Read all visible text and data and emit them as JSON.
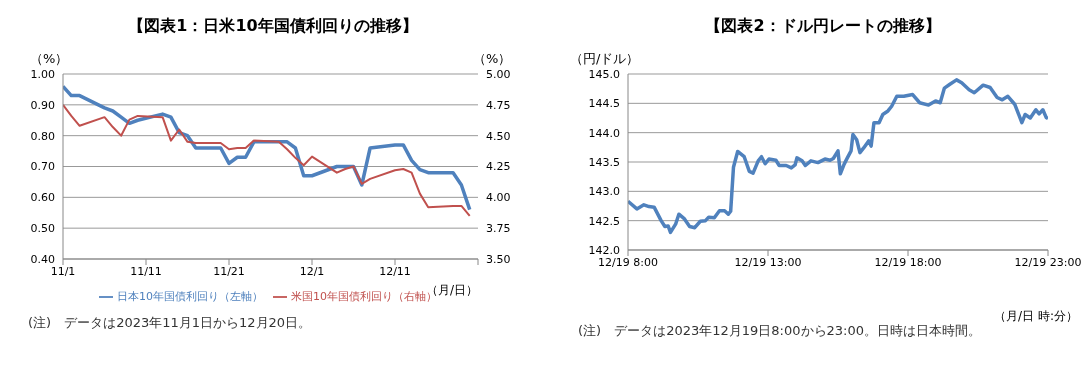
{
  "chart_data": [
    {
      "type": "line",
      "title": "【図表1：日米10年国債利回りの推移】",
      "ylabel": "（%）",
      "y2label": "（%）",
      "xlabel": "（月/日）",
      "x": [
        "2023-11-01",
        "2023-11-02",
        "2023-11-03",
        "2023-11-06",
        "2023-11-07",
        "2023-11-08",
        "2023-11-09",
        "2023-11-10",
        "2023-11-13",
        "2023-11-14",
        "2023-11-15",
        "2023-11-16",
        "2023-11-17",
        "2023-11-20",
        "2023-11-21",
        "2023-11-22",
        "2023-11-23",
        "2023-11-24",
        "2023-11-27",
        "2023-11-28",
        "2023-11-29",
        "2023-11-30",
        "2023-12-01",
        "2023-12-04",
        "2023-12-05",
        "2023-12-06",
        "2023-12-07",
        "2023-12-08",
        "2023-12-11",
        "2023-12-12",
        "2023-12-13",
        "2023-12-14",
        "2023-12-15",
        "2023-12-18",
        "2023-12-19",
        "2023-12-20"
      ],
      "series": [
        {
          "name": "日本10年国債利回り（左軸）",
          "color": "#4f81bd",
          "values": [
            0.96,
            0.93,
            0.93,
            0.89,
            0.88,
            0.86,
            0.84,
            0.85,
            0.87,
            0.86,
            0.81,
            0.8,
            0.76,
            0.76,
            0.71,
            0.73,
            0.73,
            0.78,
            0.78,
            0.78,
            0.76,
            0.67,
            0.67,
            0.7,
            0.7,
            0.7,
            0.64,
            0.76,
            0.77,
            0.77,
            0.72,
            0.69,
            0.68,
            0.68,
            0.64,
            0.56
          ]
        },
        {
          "name": "米国10年国債利回り（右軸）",
          "color": "#c0504d",
          "axis": "y2",
          "values": [
            4.75,
            4.66,
            4.58,
            4.65,
            4.57,
            4.5,
            4.63,
            4.66,
            4.65,
            4.46,
            4.55,
            4.45,
            4.44,
            4.44,
            4.39,
            4.4,
            4.4,
            4.46,
            4.45,
            4.39,
            4.32,
            4.26,
            4.33,
            4.2,
            4.23,
            4.25,
            4.11,
            4.15,
            4.22,
            4.23,
            4.2,
            4.03,
            3.92,
            3.93,
            3.93,
            3.85
          ]
        }
      ],
      "xlim": [
        "2023-11-01",
        "2023-12-21"
      ],
      "xticks": [
        {
          "value": "2023-11-01",
          "label": "11/1"
        },
        {
          "value": "2023-11-11",
          "label": "11/11"
        },
        {
          "value": "2023-11-21",
          "label": "11/21"
        },
        {
          "value": "2023-12-01",
          "label": "12/1"
        },
        {
          "value": "2023-12-11",
          "label": "12/11"
        },
        {
          "value": "2023-12-21",
          "label": null
        }
      ],
      "ylim": [
        0.4,
        1.0
      ],
      "yticks": [
        {
          "value": 0.4,
          "label": "0.40"
        },
        {
          "value": 0.5,
          "label": "0.50"
        },
        {
          "value": 0.6,
          "label": "0.60"
        },
        {
          "value": 0.7,
          "label": "0.70"
        },
        {
          "value": 0.8,
          "label": "0.80"
        },
        {
          "value": 0.9,
          "label": "0.90"
        },
        {
          "value": 1.0,
          "label": "1.00"
        }
      ],
      "y2lim": [
        3.5,
        5.0
      ],
      "y2ticks": [
        {
          "value": 3.5,
          "label": "3.50"
        },
        3.75,
        {
          "value": 4.0,
          "label": "4.00"
        },
        4.25,
        {
          "value": 4.5,
          "label": "4.50"
        },
        4.75,
        {
          "value": 5.0,
          "label": "5.00"
        }
      ],
      "grid": "y",
      "legend": "bottom",
      "marker": "none",
      "line_style": "solid",
      "annotations": [
        "(注)　データは2023年11月1日から12月20日。"
      ]
    },
    {
      "type": "line",
      "title": "【図表2：ドル円レートの推移】",
      "ylabel": "（円/ドル）",
      "xlabel": "（月/日 時:分）",
      "x": [
        "2023-12-19T08:00",
        "2023-12-19T08:19",
        "2023-12-19T08:34",
        "2023-12-19T08:45",
        "2023-12-19T08:56",
        "2023-12-19T09:11",
        "2023-12-19T09:19",
        "2023-12-19T09:26",
        "2023-12-19T09:31",
        "2023-12-19T09:42",
        "2023-12-19T09:49",
        "2023-12-19T10:01",
        "2023-12-19T10:12",
        "2023-12-19T10:23",
        "2023-12-19T10:35",
        "2023-12-19T10:46",
        "2023-12-19T10:53",
        "2023-12-19T11:05",
        "2023-12-19T11:16",
        "2023-12-19T11:27",
        "2023-12-19T11:35",
        "2023-12-19T11:40",
        "2023-12-19T11:46",
        "2023-12-19T11:55",
        "2023-12-19T12:09",
        "2023-12-19T12:20",
        "2023-12-19T12:28",
        "2023-12-19T12:39",
        "2023-12-19T12:46",
        "2023-12-19T12:54",
        "2023-12-19T13:02",
        "2023-12-19T13:17",
        "2023-12-19T13:24",
        "2023-12-19T13:39",
        "2023-12-19T13:50",
        "2023-12-19T13:58",
        "2023-12-19T14:02",
        "2023-12-19T14:13",
        "2023-12-19T14:20",
        "2023-12-19T14:32",
        "2023-12-19T14:47",
        "2023-12-19T15:02",
        "2023-12-19T15:13",
        "2023-12-19T15:20",
        "2023-12-19T15:30",
        "2023-12-19T15:35",
        "2023-12-19T15:43",
        "2023-12-19T15:50",
        "2023-12-19T15:58",
        "2023-12-19T16:02",
        "2023-12-19T16:10",
        "2023-12-19T16:17",
        "2023-12-19T16:25",
        "2023-12-19T16:36",
        "2023-12-19T16:41",
        "2023-12-19T16:47",
        "2023-12-19T16:58",
        "2023-12-19T17:06",
        "2023-12-19T17:17",
        "2023-12-19T17:25",
        "2023-12-19T17:36",
        "2023-12-19T17:51",
        "2023-12-19T18:10",
        "2023-12-19T18:25",
        "2023-12-19T18:44",
        "2023-12-19T18:59",
        "2023-12-19T19:09",
        "2023-12-19T19:18",
        "2023-12-19T19:29",
        "2023-12-19T19:44",
        "2023-12-19T19:55",
        "2023-12-19T20:11",
        "2023-12-19T20:22",
        "2023-12-19T20:41",
        "2023-12-19T20:56",
        "2023-12-19T21:11",
        "2023-12-19T21:22",
        "2023-12-19T21:34",
        "2023-12-19T21:49",
        "2023-12-19T22:04",
        "2023-12-19T22:11",
        "2023-12-19T22:22",
        "2023-12-19T22:34",
        "2023-12-19T22:41",
        "2023-12-19T22:49",
        "2023-12-19T22:56",
        "2023-12-19T23:00"
      ],
      "series": [
        {
          "color": "#4f81bd",
          "values": [
            142.83,
            142.7,
            142.77,
            142.74,
            142.73,
            142.5,
            142.4,
            142.41,
            142.3,
            142.44,
            142.61,
            142.53,
            142.4,
            142.38,
            142.49,
            142.5,
            142.56,
            142.55,
            142.67,
            142.67,
            142.61,
            142.66,
            143.41,
            143.68,
            143.59,
            143.34,
            143.31,
            143.52,
            143.59,
            143.47,
            143.55,
            143.53,
            143.44,
            143.44,
            143.4,
            143.45,
            143.57,
            143.52,
            143.44,
            143.52,
            143.49,
            143.55,
            143.53,
            143.56,
            143.69,
            143.3,
            143.46,
            143.57,
            143.69,
            143.97,
            143.88,
            143.66,
            143.74,
            143.86,
            143.77,
            144.17,
            144.17,
            144.31,
            144.37,
            144.45,
            144.62,
            144.62,
            144.65,
            144.51,
            144.47,
            144.54,
            144.51,
            144.76,
            144.82,
            144.9,
            144.85,
            144.73,
            144.68,
            144.81,
            144.77,
            144.6,
            144.56,
            144.62,
            144.48,
            144.17,
            144.31,
            144.25,
            144.39,
            144.32,
            144.39,
            144.26,
            144.24
          ]
        }
      ],
      "xlim": [
        "2023-12-19T08:00",
        "2023-12-19T23:00"
      ],
      "xticks": [
        {
          "value": "2023-12-19T08:00",
          "label": "12/19 8:00"
        },
        {
          "value": "2023-12-19T13:00",
          "label": "12/19 13:00"
        },
        {
          "value": "2023-12-19T18:00",
          "label": "12/19 18:00"
        },
        {
          "value": "2023-12-19T23:00",
          "label": "12/19 23:00"
        }
      ],
      "ylim": [
        142.0,
        145.0
      ],
      "yticks": [
        {
          "value": 142.0,
          "label": "142.0"
        },
        {
          "value": 142.5,
          "label": "142.5"
        },
        {
          "value": 143.0,
          "label": "143.0"
        },
        {
          "value": 143.5,
          "label": "143.5"
        },
        {
          "value": 144.0,
          "label": "144.0"
        },
        {
          "value": 144.5,
          "label": "144.5"
        },
        {
          "value": 145.0,
          "label": "145.0"
        }
      ],
      "grid": "y",
      "legend": false,
      "marker": "none",
      "line_style": "solid",
      "annotations": [
        "(注)　データは2023年12月19日8:00から23:00。日時は日本時間。"
      ]
    }
  ]
}
